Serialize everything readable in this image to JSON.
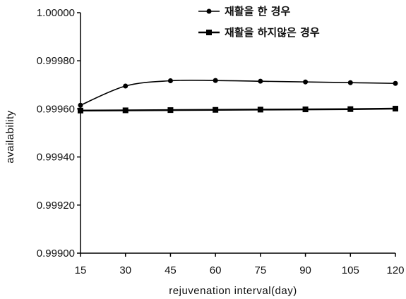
{
  "chart_data": {
    "type": "line",
    "xlabel": "rejuvenation interval(day)",
    "ylabel": "availability",
    "x": [
      15,
      30,
      45,
      60,
      75,
      90,
      105,
      120
    ],
    "x_ticks": [
      "15",
      "30",
      "45",
      "60",
      "75",
      "90",
      "105",
      "120"
    ],
    "y_ticks": [
      "0.99900",
      "0.99920",
      "0.99940",
      "0.99960",
      "0.99980",
      "1.00000"
    ],
    "ylim": [
      0.999,
      1.0
    ],
    "grid": false,
    "legend_position": "top-right",
    "series": [
      {
        "name": "재활을 한 경우",
        "marker": "circle",
        "color": "#000000",
        "values": [
          0.999615,
          0.999695,
          0.999717,
          0.999718,
          0.999715,
          0.999712,
          0.999709,
          0.999706
        ]
      },
      {
        "name": "재활을 하지않은 경우",
        "marker": "square",
        "color": "#000000",
        "values": [
          0.999593,
          0.999594,
          0.999595,
          0.999596,
          0.999597,
          0.999598,
          0.999599,
          0.999601
        ]
      }
    ]
  }
}
